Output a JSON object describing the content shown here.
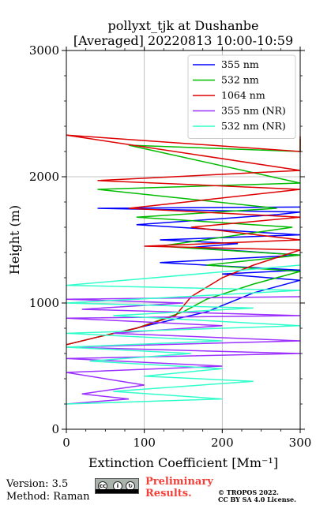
{
  "chart_data": {
    "type": "line",
    "title": "pollyxt_tjk at Dushanbe",
    "subtitle": "[Averaged] 20220813 10:00-10:59",
    "xlabel": "Extinction Coefficient [Mm⁻¹]",
    "ylabel": "Height (m)",
    "xlim": [
      0,
      300
    ],
    "ylim": [
      0,
      3000
    ],
    "xticks": [
      "0",
      "100",
      "200",
      "300"
    ],
    "yticks": [
      "0",
      "1000",
      "2000",
      "3000"
    ],
    "grid": true,
    "legend_position": "top-right",
    "series": [
      {
        "name": "355 nm",
        "color": "#0000ff",
        "x": [
          0,
          40,
          110,
          180,
          240,
          300,
          200,
          300,
          120,
          300,
          160,
          220,
          120,
          300,
          90,
          270,
          300,
          40,
          300
        ],
        "y": [
          670,
          730,
          830,
          930,
          1080,
          1180,
          1230,
          1260,
          1320,
          1380,
          1440,
          1470,
          1500,
          1540,
          1620,
          1700,
          1720,
          1750,
          1760
        ]
      },
      {
        "name": "532 nm",
        "color": "#00bb00",
        "x": [
          0,
          40,
          90,
          150,
          180,
          240,
          300,
          180,
          300,
          120,
          290,
          90,
          270,
          40,
          300,
          80,
          300,
          300
        ],
        "y": [
          670,
          730,
          800,
          930,
          1030,
          1150,
          1250,
          1300,
          1380,
          1450,
          1600,
          1680,
          1750,
          1900,
          1950,
          2250,
          2200,
          2300
        ]
      },
      {
        "name": "1064 nm",
        "color": "#dd0000",
        "x": [
          0,
          40,
          90,
          140,
          160,
          200,
          240,
          300,
          100,
          300,
          160,
          300,
          80,
          300,
          40,
          300,
          0,
          300,
          300
        ],
        "y": [
          670,
          730,
          800,
          900,
          1050,
          1200,
          1300,
          1420,
          1450,
          1500,
          1600,
          1680,
          1750,
          1900,
          1970,
          2050,
          2330,
          2200,
          2320
        ]
      },
      {
        "name": "355 nm (NR)",
        "color": "#9b30ff",
        "x": [
          0,
          80,
          20,
          100,
          0,
          200,
          0,
          300,
          0,
          300,
          60,
          200,
          0,
          300,
          20,
          150,
          0,
          300
        ],
        "y": [
          200,
          240,
          280,
          350,
          450,
          500,
          560,
          600,
          650,
          700,
          760,
          820,
          880,
          900,
          950,
          1000,
          1030,
          1050
        ]
      },
      {
        "name": "532 nm (NR)",
        "color": "#33ffcc",
        "x": [
          0,
          200,
          60,
          240,
          100,
          200,
          30,
          160,
          0,
          200,
          0,
          300,
          60,
          240,
          0,
          300,
          0,
          300
        ],
        "y": [
          200,
          240,
          300,
          380,
          420,
          480,
          540,
          600,
          650,
          700,
          760,
          820,
          900,
          960,
          1000,
          1100,
          1140,
          1300
        ]
      }
    ]
  },
  "footer": {
    "version": "Version: 3.5",
    "method": "Method: Raman",
    "license_badge": "cc-by-sa-badge",
    "preliminary_line1": "Preliminary",
    "preliminary_line2": "Results.",
    "copyright_line1": "© TROPOS 2022.",
    "copyright_line2": "CC BY SA 4.0 License.",
    "preliminary_color": "#f2403a"
  }
}
